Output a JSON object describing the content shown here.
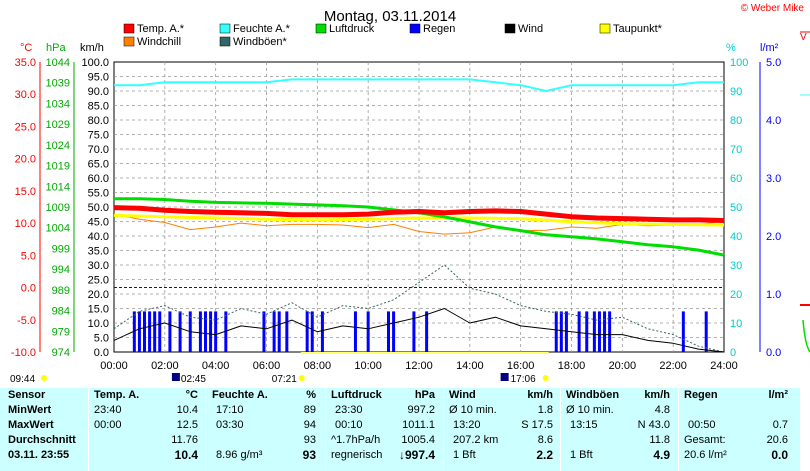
{
  "header": {
    "title": "Montag, 03.11.2014",
    "copyright": "© Weber Mike",
    "edge_label": "V"
  },
  "axes": {
    "temp_unit": "°C",
    "press_unit": "hPa",
    "wind_unit": "km/h",
    "hum_unit": "%",
    "rain_unit": "l/m²",
    "temp_ticks": [
      "35.0",
      "30.0",
      "25.0",
      "20.0",
      "15.0",
      "10.0",
      "5.0",
      "0.0",
      "-5.0",
      "-10.0"
    ],
    "press_ticks": [
      "1044",
      "1039",
      "1034",
      "1029",
      "1024",
      "1019",
      "1014",
      "1009",
      "1004",
      "999",
      "994",
      "989",
      "984",
      "979",
      "974"
    ],
    "wind_ticks": [
      "100.0",
      "95.0",
      "90.0",
      "85.0",
      "80.0",
      "75.0",
      "70.0",
      "65.0",
      "60.0",
      "55.0",
      "50.0",
      "45.0",
      "40.0",
      "35.0",
      "30.0",
      "25.0",
      "20.0",
      "15.0",
      "10.0",
      "5.0",
      "0.0"
    ],
    "hum_ticks": [
      "100",
      "90",
      "80",
      "70",
      "60",
      "50",
      "40",
      "30",
      "20",
      "10",
      "0"
    ],
    "rain_ticks": [
      "5.0",
      "4.0",
      "3.0",
      "2.0",
      "1.0",
      "0.0"
    ],
    "time_ticks": [
      "00:00",
      "02:00",
      "04:00",
      "06:00",
      "08:00",
      "10:00",
      "12:00",
      "14:00",
      "16:00",
      "18:00",
      "20:00",
      "22:00",
      "24:00"
    ]
  },
  "legend": [
    {
      "label": "Temp. A.*",
      "color": "#ff0000"
    },
    {
      "label": "Feuchte A.*",
      "color": "#33ffff"
    },
    {
      "label": "Luftdruck",
      "color": "#00dd00"
    },
    {
      "label": "Regen",
      "color": "#0000ff"
    },
    {
      "label": "Wind",
      "color": "#000000"
    },
    {
      "label": "Taupunkt*",
      "color": "#ffff00"
    },
    {
      "label": "Windchill",
      "color": "#ff8000"
    },
    {
      "label": "Windböen*",
      "color": "#336666"
    }
  ],
  "sun": {
    "sunrise_time": "07:21",
    "sunset_time": "17:06",
    "moonset_time": "02:45",
    "moonrise_time": "17:06",
    "day_start": "09:44"
  },
  "chart_data": {
    "type": "line",
    "title": "Montag, 03.11.2014",
    "x_unit": "hour",
    "x_range": [
      0,
      24
    ],
    "temp_axis": {
      "label": "°C",
      "ylim": [
        -10,
        35
      ]
    },
    "pressure_axis": {
      "label": "hPa",
      "ylim": [
        974,
        1044
      ]
    },
    "wind_axis": {
      "label": "km/h",
      "ylim": [
        0,
        100
      ]
    },
    "humidity_axis": {
      "label": "%",
      "ylim": [
        0,
        100
      ]
    },
    "rain_axis": {
      "label": "l/m²",
      "ylim": [
        0,
        5
      ]
    },
    "series": [
      {
        "name": "Temp. A.*",
        "axis": "temp",
        "color": "#ff0000",
        "x": [
          0,
          1,
          2,
          3,
          4,
          5,
          6,
          7,
          8,
          9,
          10,
          11,
          12,
          13,
          14,
          15,
          16,
          17,
          18,
          19,
          20,
          21,
          22,
          23,
          24
        ],
        "y": [
          12.4,
          12.3,
          12.0,
          11.8,
          11.7,
          11.6,
          11.5,
          11.3,
          11.3,
          11.3,
          11.4,
          11.7,
          11.8,
          11.6,
          11.8,
          11.9,
          11.8,
          11.4,
          11.0,
          10.8,
          10.7,
          10.6,
          10.5,
          10.5,
          10.4
        ]
      },
      {
        "name": "Feuchte A.*",
        "axis": "humidity",
        "color": "#33ffff",
        "x": [
          0,
          1,
          2,
          3,
          4,
          5,
          6,
          7,
          8,
          9,
          10,
          11,
          12,
          13,
          14,
          15,
          16,
          17,
          18,
          19,
          20,
          21,
          22,
          23,
          24
        ],
        "y": [
          92,
          92,
          93,
          93,
          93,
          93,
          93,
          94,
          94,
          94,
          94,
          94,
          94,
          94,
          94,
          93,
          92,
          90,
          92,
          92,
          92,
          92,
          92,
          93,
          93
        ]
      },
      {
        "name": "Luftdruck",
        "axis": "pressure",
        "color": "#00dd00",
        "x": [
          0,
          1,
          2,
          3,
          4,
          5,
          6,
          7,
          8,
          9,
          10,
          11,
          12,
          13,
          14,
          15,
          16,
          17,
          18,
          19,
          20,
          21,
          22,
          23,
          24
        ],
        "y": [
          1011.0,
          1011.0,
          1010.8,
          1010.4,
          1010.1,
          1010.0,
          1009.9,
          1009.7,
          1009.5,
          1009.3,
          1009.0,
          1008.3,
          1007.6,
          1006.6,
          1005.4,
          1004.2,
          1003.3,
          1002.3,
          1001.8,
          1001.3,
          1000.6,
          999.9,
          999.4,
          998.6,
          997.4
        ]
      },
      {
        "name": "Taupunkt*",
        "axis": "temp",
        "color": "#ffff00",
        "x": [
          0,
          2,
          4,
          6,
          8,
          10,
          12,
          14,
          16,
          18,
          20,
          22,
          24
        ],
        "y": [
          11.2,
          11.0,
          10.8,
          10.6,
          10.5,
          10.6,
          10.8,
          10.8,
          10.7,
          10.2,
          9.9,
          9.8,
          9.7
        ]
      },
      {
        "name": "Windchill",
        "axis": "temp",
        "color": "#ff8000",
        "x": [
          0,
          1,
          2,
          3,
          4,
          5,
          6,
          7,
          8,
          9,
          10,
          11,
          12,
          13,
          14,
          15,
          16,
          17,
          18,
          19,
          20,
          21,
          22,
          23,
          24
        ],
        "y": [
          11.4,
          10.6,
          10.1,
          9.0,
          9.4,
          10.0,
          9.6,
          9.8,
          9.8,
          9.7,
          9.3,
          9.8,
          8.7,
          8.3,
          8.5,
          9.4,
          8.8,
          8.9,
          9.4,
          9.2,
          9.8,
          9.6,
          9.7,
          9.8,
          10.3
        ]
      },
      {
        "name": "Wind",
        "axis": "wind",
        "color": "#000000",
        "x": [
          0,
          1,
          2,
          3,
          4,
          5,
          6,
          7,
          8,
          9,
          10,
          11,
          12,
          13,
          14,
          15,
          16,
          17,
          18,
          19,
          20,
          21,
          22,
          23,
          24
        ],
        "y": [
          4,
          8,
          10,
          7,
          6,
          9,
          8,
          11,
          7,
          9,
          8,
          10,
          12,
          15,
          10,
          12,
          9,
          8,
          7,
          6,
          6,
          4,
          3,
          1,
          0
        ]
      },
      {
        "name": "Windböen*",
        "axis": "wind",
        "color": "#336666",
        "x": [
          0,
          1,
          2,
          3,
          4,
          5,
          6,
          7,
          8,
          9,
          10,
          11,
          12,
          13,
          14,
          15,
          16,
          17,
          18,
          19,
          20,
          21,
          22,
          23,
          24
        ],
        "y": [
          8,
          14,
          16,
          12,
          11,
          15,
          13,
          17,
          12,
          16,
          15,
          18,
          24,
          30,
          22,
          20,
          16,
          14,
          13,
          11,
          12,
          8,
          6,
          2,
          0
        ]
      }
    ],
    "rain_events_hours": [
      0.8,
      1.0,
      1.2,
      1.4,
      1.6,
      1.8,
      2.2,
      2.6,
      3.0,
      3.4,
      3.6,
      3.8,
      4.0,
      4.4,
      5.9,
      6.3,
      6.5,
      6.8,
      7.6,
      7.8,
      8.2,
      9.5,
      10.0,
      10.8,
      11.0,
      11.8,
      12.3,
      17.4,
      17.6,
      17.8,
      18.3,
      18.6,
      18.9,
      19.1,
      19.3,
      19.5,
      22.4,
      23.3
    ],
    "rain_bar_height": 0.7,
    "grid": true,
    "reference_lines": [
      {
        "axis": "temp",
        "value": 0,
        "color": "#0000ff",
        "style": "dashed"
      }
    ]
  },
  "stats": {
    "col_sensor": {
      "header": "Sensor",
      "rows": [
        "MinWert",
        "MaxWert",
        "Durchschnitt",
        "03.11. 23:55"
      ]
    },
    "col_temp": {
      "header": "Temp. A.",
      "unit": "°C",
      "times": [
        "23:40",
        "00:00",
        "",
        ""
      ],
      "values": [
        "10.4",
        "12.5",
        "11.76",
        "10.4"
      ]
    },
    "col_hum": {
      "header": "Feuchte A.",
      "unit": "%",
      "times": [
        "17:10",
        "03:30",
        "",
        "8.96 g/m³"
      ],
      "values": [
        "89",
        "94",
        "93",
        "93"
      ]
    },
    "col_press": {
      "header": "Luftdruck",
      "unit": "hPa",
      "times": [
        "23:30",
        "00:10",
        "^1.7hPa/h",
        "regnerisch"
      ],
      "values": [
        "997.2",
        "1011.1",
        "1005.4",
        "↓997.4"
      ]
    },
    "col_wind": {
      "header": "Wind",
      "unit": "km/h",
      "times": [
        "Ø 10 min.",
        "13:20",
        "207.2 km",
        "1 Bft"
      ],
      "mid": [
        "",
        "S 17.5",
        "",
        ""
      ],
      "values": [
        "1.8",
        "",
        "8.6",
        "2.2"
      ]
    },
    "col_gust": {
      "header": "Windböen",
      "unit": "km/h",
      "times": [
        "Ø 10 min.",
        "13:15",
        "",
        "1 Bft"
      ],
      "mid": [
        "",
        "N 43.0",
        "",
        ""
      ],
      "values": [
        "4.8",
        "",
        "11.8",
        "4.9"
      ]
    },
    "col_rain": {
      "header": "Regen",
      "unit": "l/m²",
      "times": [
        "",
        "00:50",
        "Gesamt:",
        "20.6 l/m²"
      ],
      "values": [
        "",
        "0.7",
        "20.6",
        "0.0"
      ]
    }
  }
}
